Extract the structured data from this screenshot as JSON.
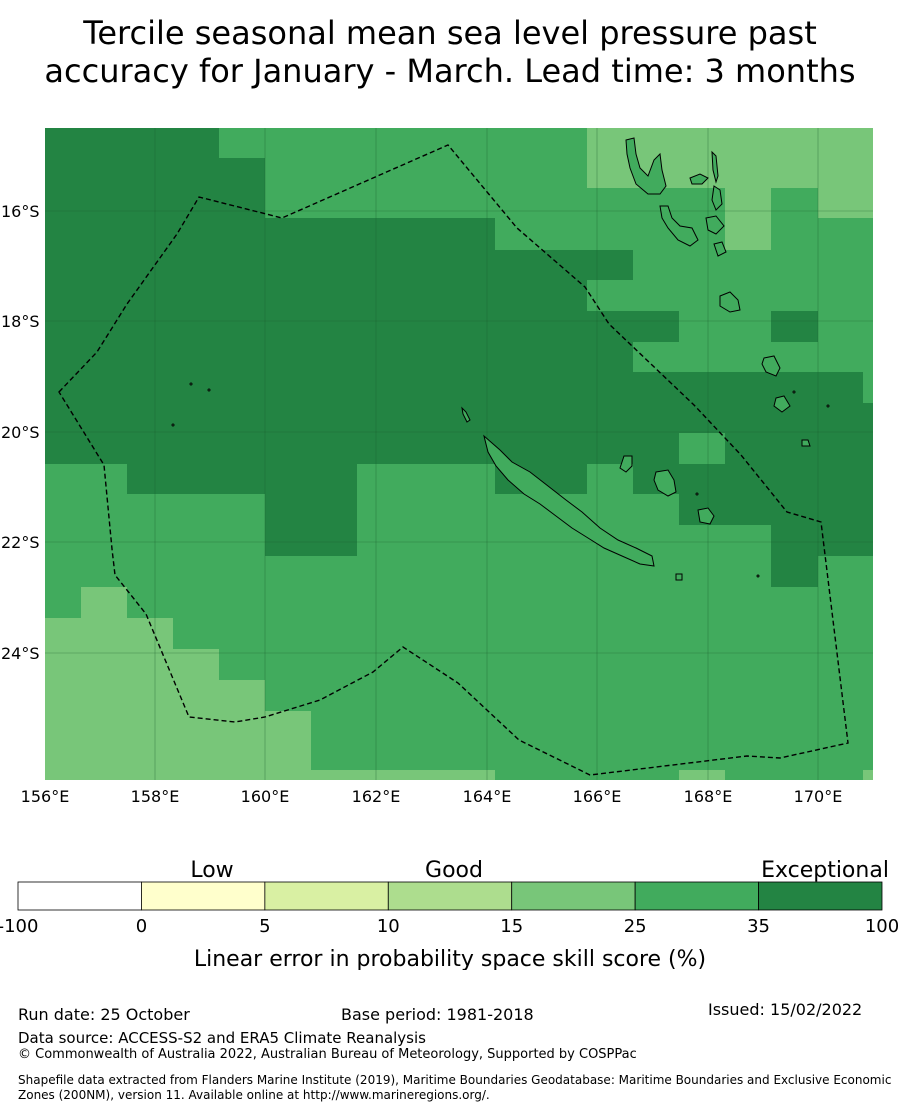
{
  "title": {
    "line1": "Tercile seasonal mean sea level pressure past",
    "line2": "accuracy for January - March. Lead time: 3 months"
  },
  "map": {
    "lon_labels": [
      "156°E",
      "158°E",
      "160°E",
      "162°E",
      "164°E",
      "166°E",
      "168°E",
      "170°E"
    ],
    "lat_labels": [
      "16°S",
      "18°S",
      "20°S",
      "22°S",
      "24°S"
    ],
    "lon_range": [
      156,
      171
    ],
    "lat_range": [
      -14.5,
      -26.3
    ]
  },
  "legend": {
    "categories": [
      "Low",
      "Good",
      "Exceptional"
    ],
    "bins": [
      {
        "from": "-100",
        "to": "0",
        "color": "#ffffff"
      },
      {
        "from": "0",
        "to": "5",
        "color": "#ffffcc"
      },
      {
        "from": "5",
        "to": "10",
        "color": "#d9f0a3"
      },
      {
        "from": "10",
        "to": "15",
        "color": "#addd8e"
      },
      {
        "from": "15",
        "to": "25",
        "color": "#78c679"
      },
      {
        "from": "25",
        "to": "35",
        "color": "#41ab5d"
      },
      {
        "from": "35",
        "to": "100",
        "color": "#238443"
      }
    ],
    "tick_labels": [
      "-100",
      "0",
      "5",
      "10",
      "15",
      "25",
      "35",
      "100"
    ],
    "axis_label": "Linear error in probability space skill score (%)"
  },
  "footer": {
    "run_date": "Run date: 25 October",
    "base_period": "Base period: 1981-2018",
    "issued": "Issued: 15/02/2022",
    "data_source": "Data source: ACCESS-S2 and ERA5 Climate Reanalysis",
    "copyright": "© Commonwealth of Australia 2022, Australian Bureau of Meteorology, Supported by COSPPac",
    "shapefile": "Shapefile data extracted from Flanders Marine Institute (2019), Maritime Boundaries Geodatabase: Maritime Boundaries and Exclusive Economic Zones (200NM), version 11. Available online at http://www.marineregions.org/."
  },
  "colors": {
    "exceptional": "#238443",
    "good_high": "#41ab5d",
    "good_mid": "#78c679",
    "grid": "#1a5c2e"
  }
}
